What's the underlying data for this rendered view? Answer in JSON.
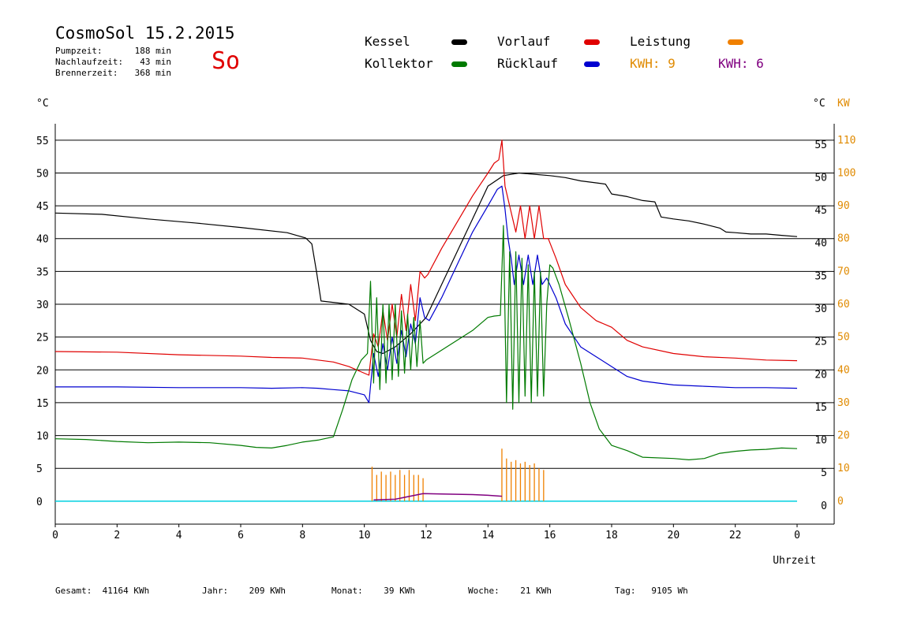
{
  "header": {
    "title": "CosmoSol 15.2.2015",
    "day": "So",
    "stats": [
      {
        "label": "Pumpzeit:",
        "value": "188 min"
      },
      {
        "label": "Nachlaufzeit:",
        "value": "43 min"
      },
      {
        "label": "Brennerzeit:",
        "value": "368 min"
      }
    ]
  },
  "legend": {
    "kessel": {
      "label": "Kessel",
      "color": "#000000"
    },
    "kollektor": {
      "label": "Kollektor",
      "color": "#007a00"
    },
    "vorlauf": {
      "label": "Vorlauf",
      "color": "#e00000"
    },
    "ruecklauf": {
      "label": "Rücklauf",
      "color": "#0000d0"
    },
    "leistung": {
      "label": "Leistung",
      "color": "#f08000"
    },
    "kwh1": {
      "label": "KWH: 9",
      "color": "#e08a00"
    },
    "kwh2": {
      "label": "KWH: 6",
      "color": "#800080"
    }
  },
  "footer": {
    "gesamt": "Gesamt:  41164 KWh",
    "jahr": "Jahr:    209 KWh",
    "monat": "Monat:    39 KWh",
    "woche": "Woche:    21 KWh",
    "tag": "Tag:   9105 Wh"
  },
  "chart_data": {
    "type": "line",
    "xlabel": "Uhrzeit",
    "ylabel_left": "°C",
    "ylabel_right_temp": "°C",
    "ylabel_right_power": "KW",
    "xlim": [
      0,
      24
    ],
    "ylim": [
      -3.5,
      57.5
    ],
    "y2lim": [
      -7,
      115
    ],
    "x_ticks": [
      "0",
      "2",
      "4",
      "6",
      "8",
      "10",
      "12",
      "14",
      "16",
      "18",
      "20",
      "22",
      "0"
    ],
    "y_ticks": [
      0,
      5,
      10,
      15,
      20,
      25,
      30,
      35,
      40,
      45,
      50,
      55
    ],
    "y2_ticks": [
      0,
      10,
      20,
      30,
      40,
      50,
      60,
      70,
      80,
      90,
      100,
      110
    ],
    "grid": true,
    "series": [
      {
        "name": "Kessel",
        "color": "#000000",
        "x": [
          0,
          1.5,
          3,
          4.5,
          6,
          7.5,
          7.8,
          8.1,
          8.3,
          8.45,
          8.6,
          9.5,
          10.0,
          10.2,
          10.4,
          10.6,
          11,
          11.5,
          12,
          12.5,
          13,
          13.5,
          14,
          14.5,
          15,
          15.5,
          16,
          16.5,
          17,
          17.5,
          17.8,
          18,
          18.5,
          19,
          19.4,
          19.6,
          20,
          20.5,
          21,
          21.5,
          21.7,
          22,
          22.5,
          23,
          23.5,
          24
        ],
        "y": [
          43.9,
          43.7,
          43.0,
          42.4,
          41.7,
          40.9,
          40.5,
          40.1,
          39.2,
          35,
          30.5,
          30.0,
          28.5,
          24.5,
          22.8,
          22.5,
          23.5,
          25.5,
          28,
          33,
          38,
          43,
          48,
          49.6,
          50,
          49.8,
          49.6,
          49.3,
          48.8,
          48.5,
          48.3,
          46.8,
          46.4,
          45.8,
          45.6,
          43.3,
          43.0,
          42.7,
          42.2,
          41.6,
          41.0,
          40.9,
          40.7,
          40.7,
          40.5,
          40.3
        ]
      },
      {
        "name": "Vorlauf",
        "color": "#e00000",
        "x": [
          0,
          2,
          4,
          6,
          7,
          8,
          8.5,
          9,
          9.5,
          10,
          10.15,
          10.3,
          10.45,
          10.6,
          10.75,
          10.9,
          11.05,
          11.2,
          11.35,
          11.5,
          11.65,
          11.8,
          11.95,
          12.05,
          12.5,
          13,
          13.5,
          14,
          14.2,
          14.35,
          14.45,
          14.55,
          14.65,
          14.75,
          14.9,
          15.05,
          15.2,
          15.35,
          15.5,
          15.65,
          15.8,
          15.95,
          16.2,
          16.5,
          17,
          17.5,
          18,
          18.5,
          19,
          20,
          21,
          22,
          23,
          24
        ],
        "y": [
          22.8,
          22.7,
          22.3,
          22.1,
          21.9,
          21.8,
          21.5,
          21.2,
          20.5,
          19.5,
          19.2,
          25.5,
          23.5,
          29,
          24.5,
          30,
          25,
          31.5,
          26,
          33,
          27.5,
          35,
          34,
          34.5,
          38.5,
          42.5,
          46.5,
          50,
          51.5,
          52,
          55,
          48,
          46,
          44,
          41,
          45,
          40,
          45,
          40,
          45,
          40,
          40,
          37,
          33,
          29.5,
          27.5,
          26.5,
          24.5,
          23.5,
          22.5,
          22.0,
          21.8,
          21.5,
          21.4
        ]
      },
      {
        "name": "Rücklauf",
        "color": "#0000d0",
        "x": [
          0,
          2,
          4,
          6,
          7,
          8,
          8.5,
          9,
          9.5,
          10,
          10.15,
          10.3,
          10.45,
          10.6,
          10.75,
          10.9,
          11.05,
          11.2,
          11.35,
          11.5,
          11.65,
          11.8,
          11.95,
          12.1,
          12.5,
          13,
          13.5,
          14,
          14.3,
          14.45,
          14.55,
          14.65,
          14.75,
          14.85,
          15.0,
          15.15,
          15.3,
          15.45,
          15.6,
          15.75,
          15.9,
          16.2,
          16.5,
          17,
          17.5,
          18,
          18.5,
          19,
          19.5,
          20,
          21,
          22,
          23,
          24
        ],
        "y": [
          17.4,
          17.4,
          17.3,
          17.3,
          17.2,
          17.3,
          17.2,
          17.0,
          16.8,
          16.2,
          15.0,
          22.5,
          19,
          24,
          20,
          25,
          21,
          26,
          22,
          27,
          24,
          31,
          28,
          27.5,
          31,
          36,
          41,
          45,
          47.5,
          48,
          44.5,
          40,
          37,
          33,
          37.5,
          33,
          37.5,
          33,
          37.5,
          33,
          34,
          31,
          27,
          23.5,
          22,
          20.5,
          19,
          18.3,
          18,
          17.7,
          17.5,
          17.3,
          17.3,
          17.2
        ]
      },
      {
        "name": "Kollektor",
        "color": "#007a00",
        "x": [
          0,
          1,
          2,
          3,
          4,
          5,
          6,
          6.5,
          7,
          7.5,
          8,
          8.5,
          9,
          9.3,
          9.6,
          9.9,
          10.1,
          10.2,
          10.3,
          10.4,
          10.5,
          10.6,
          10.7,
          10.8,
          10.9,
          11.0,
          11.1,
          11.2,
          11.3,
          11.4,
          11.5,
          11.6,
          11.7,
          11.8,
          11.9,
          12.0,
          12.5,
          13,
          13.5,
          14,
          14.2,
          14.4,
          14.5,
          14.6,
          14.7,
          14.8,
          14.9,
          15.0,
          15.1,
          15.2,
          15.3,
          15.4,
          15.5,
          15.6,
          15.7,
          15.8,
          15.9,
          16.0,
          16.1,
          16.3,
          16.6,
          17,
          17.3,
          17.6,
          18,
          18.5,
          19,
          20,
          20.5,
          21,
          21.5,
          22,
          22.5,
          23,
          23.5,
          24
        ],
        "y": [
          9.5,
          9.4,
          9.1,
          8.9,
          9.0,
          8.9,
          8.5,
          8.2,
          8.1,
          8.5,
          9.0,
          9.3,
          9.8,
          14,
          18.5,
          21.5,
          22.5,
          33.5,
          18,
          31,
          17,
          30,
          18,
          30,
          18.5,
          30,
          19,
          29,
          19.5,
          28.5,
          20,
          28,
          20.5,
          27.5,
          21,
          21.5,
          23,
          24.5,
          26,
          28,
          28.2,
          28.3,
          42,
          15,
          38,
          14,
          38,
          15,
          37,
          16,
          36,
          15,
          35,
          16,
          35,
          16,
          30,
          36,
          35.5,
          33,
          28,
          21,
          15,
          11,
          8.5,
          7.7,
          6.7,
          6.5,
          6.3,
          6.5,
          7.3,
          7.6,
          7.8,
          7.9,
          8.1,
          8.0
        ]
      }
    ],
    "power_series": [
      {
        "name": "Leistung",
        "color": "#f08000",
        "axis": "right",
        "x": [
          10.25,
          10.4,
          10.55,
          10.7,
          10.85,
          11.0,
          11.15,
          11.3,
          11.45,
          11.6,
          11.75,
          11.9,
          14.45,
          14.6,
          14.75,
          14.9,
          15.05,
          15.2,
          15.35,
          15.5,
          15.65,
          15.8
        ],
        "y": [
          10.5,
          8,
          9,
          8,
          9,
          8,
          9.5,
          8,
          9.5,
          8,
          8,
          7,
          16,
          13,
          12,
          12.5,
          11.5,
          12,
          11,
          11.5,
          10,
          9.5
        ]
      },
      {
        "name": "KWH 6",
        "color": "#800080",
        "axis": "right",
        "x": [
          10.3,
          11.0,
          11.9,
          12.5,
          13,
          13.5,
          14.0,
          14.45
        ],
        "y": [
          0.4,
          0.6,
          2.3,
          2.2,
          2.1,
          2.0,
          1.8,
          1.5
        ]
      }
    ]
  }
}
